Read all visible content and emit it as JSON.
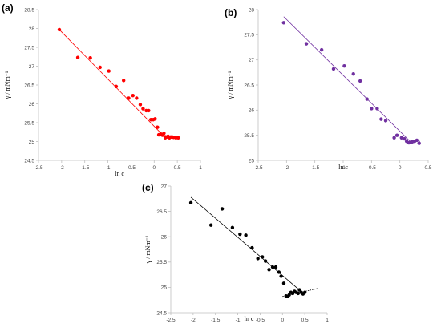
{
  "chart_data": [
    {
      "type": "scatter",
      "panel_label": "(a)",
      "xlabel": "ln c",
      "ylabel": "γ / mNm⁻¹",
      "xlim": [
        -2.5,
        1
      ],
      "ylim": [
        24.5,
        28.5
      ],
      "xticks": [
        "-2.5",
        "-2",
        "-1.5",
        "-1",
        "-0.5",
        "0",
        "0.5",
        "1"
      ],
      "yticks": [
        "24.5",
        "25",
        "25.5",
        "26",
        "26.5",
        "27",
        "27.5",
        "28",
        "28.5"
      ],
      "grid": false,
      "legend": "none",
      "marker_color": "#ff0000",
      "series": [
        {
          "x": [
            -2.05,
            -1.65,
            -1.38,
            -1.17,
            -0.98,
            -0.82,
            -0.66,
            -0.55,
            -0.46,
            -0.38,
            -0.3,
            -0.24,
            -0.17,
            -0.12,
            -0.07,
            -0.02,
            0.02,
            0.07,
            0.1,
            0.14,
            0.18,
            0.21,
            0.24,
            0.27,
            0.3,
            0.33,
            0.36,
            0.39,
            0.42,
            0.47,
            0.52
          ],
          "y": [
            27.97,
            27.23,
            27.22,
            26.97,
            26.87,
            26.46,
            26.62,
            26.15,
            26.22,
            26.15,
            25.98,
            25.87,
            25.82,
            25.82,
            25.58,
            25.58,
            25.6,
            25.38,
            25.18,
            25.2,
            25.17,
            25.22,
            25.1,
            25.12,
            25.14,
            25.1,
            25.12,
            25.12,
            25.11,
            25.1,
            25.1
          ]
        }
      ],
      "fit_lines": [
        {
          "x": [
            -2.05,
            0.18
          ],
          "y": [
            27.97,
            25.18
          ]
        },
        {
          "x": [
            0.18,
            0.52
          ],
          "y": [
            25.18,
            25.1
          ]
        }
      ]
    },
    {
      "type": "scatter",
      "panel_label": "(b)",
      "xlabel": "ln c",
      "ylabel": "γ / mNm⁻¹",
      "xlim": [
        -2.5,
        0.5
      ],
      "ylim": [
        25,
        28
      ],
      "xticks": [
        "-2.5",
        "-2",
        "-1.5",
        "-1",
        "-0.5",
        "0",
        "0.5"
      ],
      "yticks": [
        "25",
        "25.5",
        "26",
        "26.5",
        "27",
        "27.5",
        "28"
      ],
      "grid": false,
      "legend": "none",
      "marker_color": "#7030a0",
      "series": [
        {
          "x": [
            -2.05,
            -1.65,
            -1.38,
            -1.17,
            -0.98,
            -0.82,
            -0.7,
            -0.58,
            -0.5,
            -0.4,
            -0.33,
            -0.25,
            -0.1,
            -0.05,
            0.03,
            0.08,
            0.12,
            0.16,
            0.19,
            0.22,
            0.26,
            0.3,
            0.34
          ],
          "y": [
            27.74,
            27.32,
            27.2,
            26.82,
            26.88,
            26.72,
            26.58,
            26.22,
            26.03,
            26.03,
            25.82,
            25.79,
            25.45,
            25.5,
            25.45,
            25.43,
            25.38,
            25.35,
            25.36,
            25.37,
            25.38,
            25.4,
            25.34
          ]
        }
      ],
      "fit_lines": [
        {
          "x": [
            -2.05,
            0.18
          ],
          "y": [
            27.86,
            25.38
          ]
        },
        {
          "x": [
            0.18,
            0.36
          ],
          "y": [
            25.38,
            25.38
          ]
        }
      ]
    },
    {
      "type": "scatter",
      "panel_label": "(c)",
      "xlabel": "ln c",
      "ylabel": "γ / mNm⁻¹",
      "xlim": [
        -2.5,
        1
      ],
      "ylim": [
        24.5,
        27
      ],
      "xticks": [
        "-2.5",
        "-2",
        "-1.5",
        "-1",
        "-0.5",
        "0",
        "0.5",
        "1"
      ],
      "yticks": [
        "24.5",
        "25",
        "25.5",
        "26",
        "26.5",
        "27"
      ],
      "grid": false,
      "legend": "none",
      "marker_color": "#000000",
      "series": [
        {
          "x": [
            -2.05,
            -1.6,
            -1.35,
            -1.12,
            -0.95,
            -0.82,
            -0.68,
            -0.55,
            -0.45,
            -0.38,
            -0.3,
            -0.22,
            -0.15,
            -0.08,
            -0.03,
            0.03,
            0.08,
            0.12,
            0.15,
            0.19,
            0.23,
            0.27,
            0.31,
            0.35,
            0.38,
            0.42,
            0.46,
            0.5
          ],
          "y": [
            26.67,
            26.23,
            26.55,
            26.18,
            26.05,
            26.03,
            25.78,
            25.57,
            25.6,
            25.52,
            25.35,
            25.4,
            25.4,
            25.3,
            25.22,
            25.08,
            24.83,
            24.82,
            24.85,
            24.9,
            24.88,
            24.92,
            24.9,
            24.88,
            24.95,
            24.9,
            24.87,
            24.9
          ]
        }
      ],
      "fit_lines": [
        {
          "x": [
            -2.05,
            0.35
          ],
          "y": [
            26.78,
            24.97
          ]
        },
        {
          "x": [
            0.0,
            0.8
          ],
          "y": [
            24.82,
            24.98
          ]
        }
      ]
    }
  ]
}
